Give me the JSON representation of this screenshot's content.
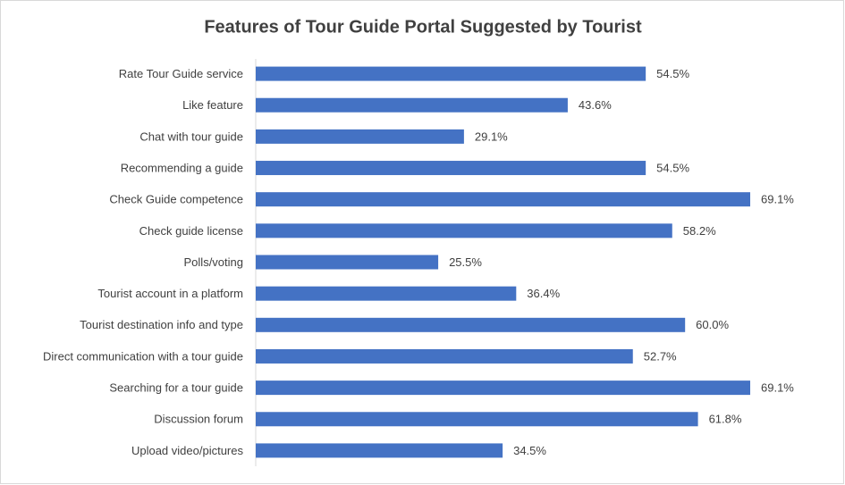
{
  "chart_data": {
    "type": "bar",
    "orientation": "horizontal",
    "title": "Features of Tour Guide Portal Suggested by Tourist",
    "categories": [
      "Rate Tour Guide service",
      "Like feature",
      "Chat with tour guide",
      "Recommending a guide",
      "Check Guide competence",
      "Check guide license",
      "Polls/voting",
      "Tourist account in a platform",
      "Tourist destination info and type",
      "Direct communication with a tour guide",
      "Searching for a tour guide",
      "Discussion forum",
      "Upload video/pictures"
    ],
    "values": [
      54.5,
      43.6,
      29.1,
      54.5,
      69.1,
      58.2,
      25.5,
      36.4,
      60.0,
      52.7,
      69.1,
      61.8,
      34.5
    ],
    "value_labels": [
      "54.5%",
      "43.6%",
      "29.1%",
      "54.5%",
      "69.1%",
      "58.2%",
      "25.5%",
      "36.4%",
      "60.0%",
      "52.7%",
      "69.1%",
      "61.8%",
      "34.5%"
    ],
    "color": "#4472c4"
  }
}
